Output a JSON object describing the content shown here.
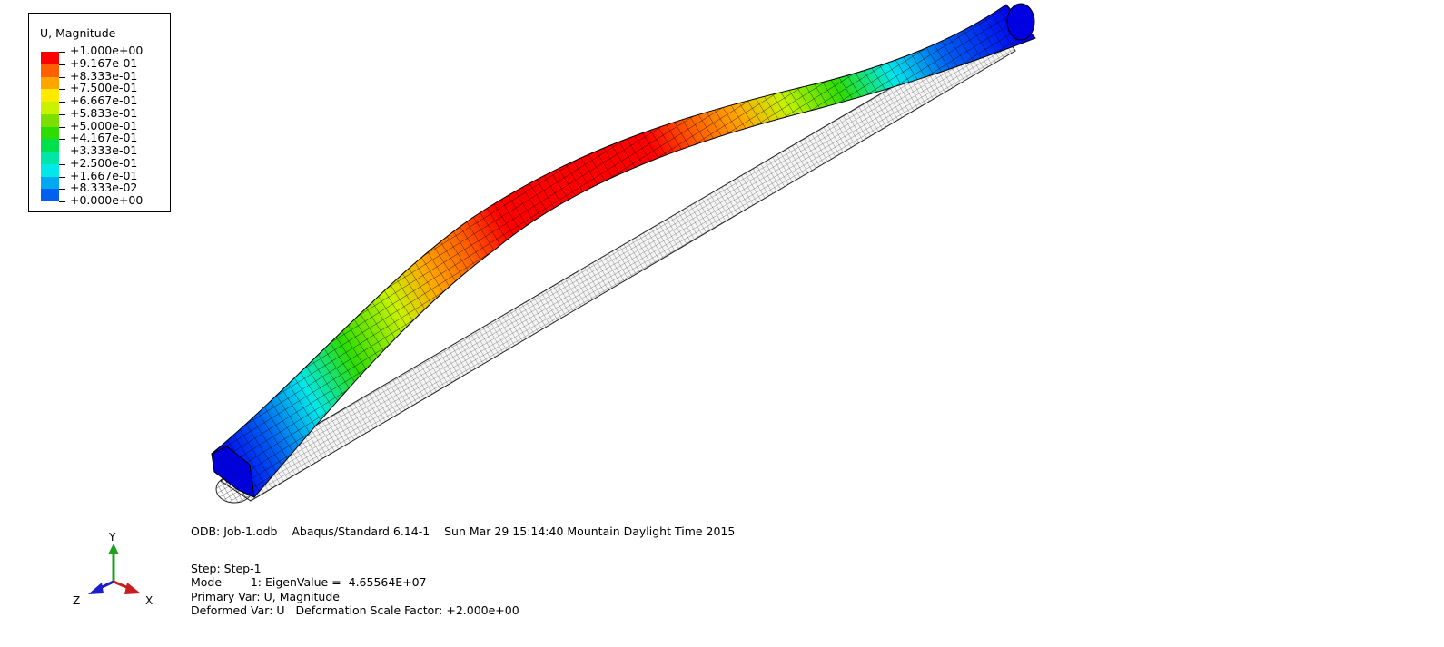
{
  "legend": {
    "title": "U, Magnitude",
    "levels": [
      "+1.000e+00",
      "+9.167e-01",
      "+8.333e-01",
      "+7.500e-01",
      "+6.667e-01",
      "+5.833e-01",
      "+5.000e-01",
      "+4.167e-01",
      "+3.333e-01",
      "+2.500e-01",
      "+1.667e-01",
      "+8.333e-02",
      "+0.000e+00"
    ],
    "colors": [
      "#ff0000",
      "#ff5f00",
      "#ffa500",
      "#ffea00",
      "#c9f200",
      "#7be000",
      "#2edc00",
      "#00e04d",
      "#00e6a6",
      "#00e8ea",
      "#00a9ef",
      "#0060f0",
      "#0000f0"
    ]
  },
  "info": {
    "odb": "ODB: Job-1.odb    Abaqus/Standard 6.14-1    Sun Mar 29 15:14:40 Mountain Daylight Time 2015",
    "step": "Step: Step-1",
    "mode": "Mode        1: EigenValue =  4.65564E+07",
    "primary_var": "Primary Var: U, Magnitude",
    "deformed_var": "Deformed Var: U   Deformation Scale Factor: +2.000e+00"
  },
  "triad": {
    "x_label": "X",
    "y_label": "Y",
    "z_label": "Z",
    "x_color": "#c81e1e",
    "y_color": "#1ea01e",
    "z_color": "#1e1ec8"
  }
}
